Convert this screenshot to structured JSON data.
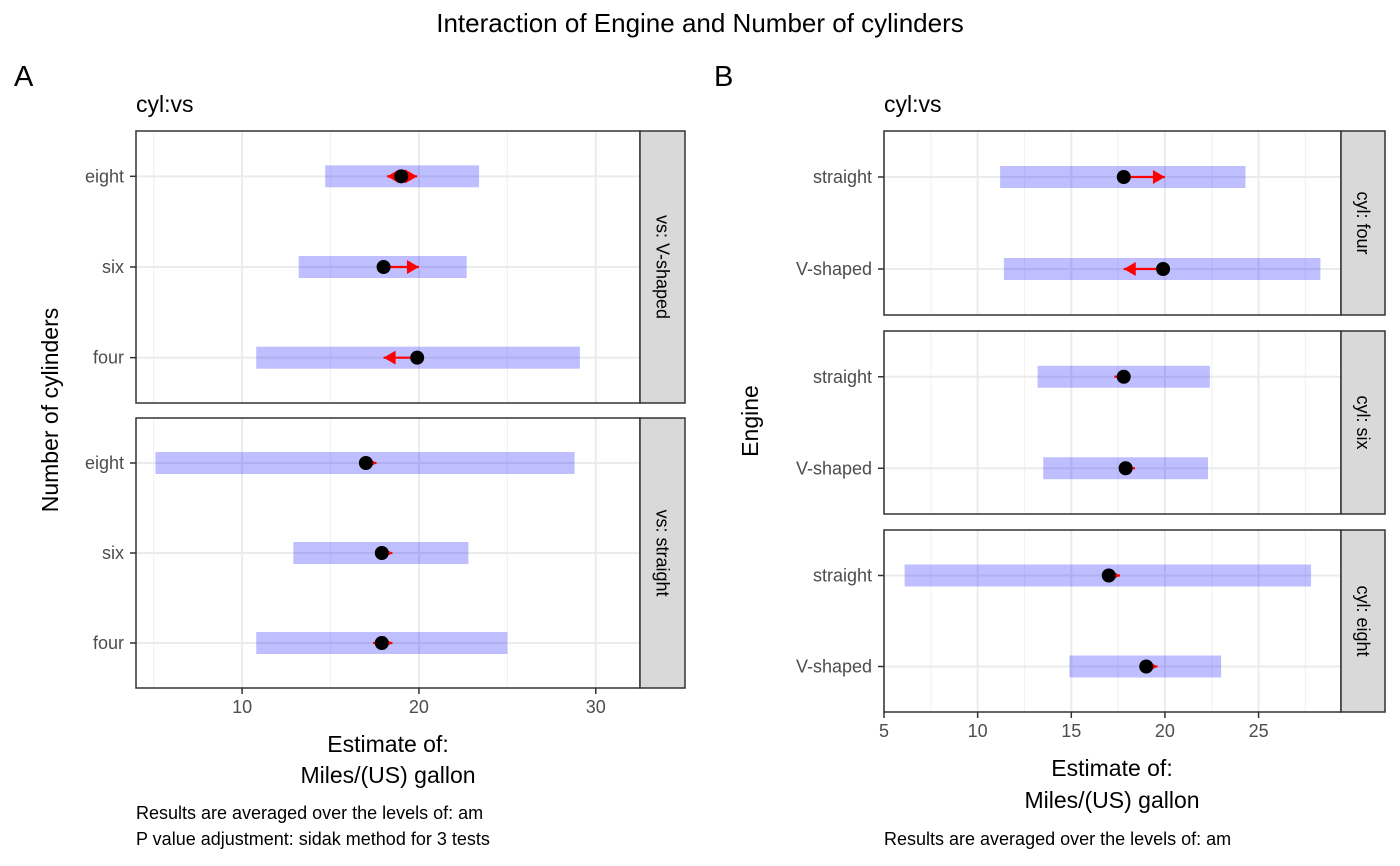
{
  "title": "Interaction of Engine and Number of cylinders",
  "colors": {
    "ci": "#0000ff",
    "arrow": "#ff0000",
    "point": "#000000",
    "strip": "#d9d9d9"
  },
  "chart_data": [
    {
      "panel_tag": "A",
      "type": "interval",
      "subtitle": "cyl:vs",
      "xlabel_line1": "Estimate of:",
      "xlabel_line2": "Miles/(US) gallon",
      "ylabel": "Number of cylinders",
      "xticks": [
        "10",
        "20",
        "30"
      ],
      "xlim": [
        4,
        32.5
      ],
      "caption_line1": "Results are averaged over the levels of: am",
      "caption_line2": "P value adjustment: sidak method for 3 tests",
      "grid": true,
      "facets": [
        {
          "label": "vs: V-shaped",
          "rows": [
            {
              "category": "eight",
              "estimate": 19.0,
              "ci": [
                14.7,
                23.4
              ],
              "arrow_left": 18.2,
              "arrow_right": 19.9
            },
            {
              "category": "six",
              "estimate": 18.0,
              "ci": [
                13.2,
                22.7
              ],
              "arrow_left": null,
              "arrow_right": 20.0
            },
            {
              "category": "four",
              "estimate": 19.9,
              "ci": [
                10.8,
                29.1
              ],
              "arrow_left": 18.0,
              "arrow_right": null
            }
          ]
        },
        {
          "label": "vs: straight",
          "rows": [
            {
              "category": "eight",
              "estimate": 17.0,
              "ci": [
                5.1,
                28.8
              ],
              "arrow_left": null,
              "arrow_right": 17.6
            },
            {
              "category": "six",
              "estimate": 17.9,
              "ci": [
                12.9,
                22.8
              ],
              "arrow_left": null,
              "arrow_right": 18.5
            },
            {
              "category": "four",
              "estimate": 17.9,
              "ci": [
                10.8,
                25.0
              ],
              "arrow_left": 17.4,
              "arrow_right": 18.5
            }
          ]
        }
      ]
    },
    {
      "panel_tag": "B",
      "type": "interval",
      "subtitle": "cyl:vs",
      "xlabel_line1": "Estimate of:",
      "xlabel_line2": "Miles/(US) gallon",
      "ylabel": "Engine",
      "xticks": [
        "5",
        "10",
        "15",
        "20",
        "25"
      ],
      "xlim": [
        5,
        29.4
      ],
      "caption_line1": "Results are averaged over the levels of: am",
      "grid": true,
      "facets": [
        {
          "label": "cyl: four",
          "rows": [
            {
              "category": "straight",
              "estimate": 17.8,
              "ci": [
                11.2,
                24.3
              ],
              "arrow_left": null,
              "arrow_right": 20.0
            },
            {
              "category": "V-shaped",
              "estimate": 19.9,
              "ci": [
                11.4,
                28.3
              ],
              "arrow_left": 17.8,
              "arrow_right": null
            }
          ]
        },
        {
          "label": "cyl: six",
          "rows": [
            {
              "category": "straight",
              "estimate": 17.8,
              "ci": [
                13.2,
                22.4
              ],
              "arrow_left": 17.3,
              "arrow_right": null
            },
            {
              "category": "V-shaped",
              "estimate": 17.9,
              "ci": [
                13.5,
                22.3
              ],
              "arrow_left": null,
              "arrow_right": 18.4
            }
          ]
        },
        {
          "label": "cyl: eight",
          "rows": [
            {
              "category": "straight",
              "estimate": 17.0,
              "ci": [
                6.1,
                27.8
              ],
              "arrow_left": null,
              "arrow_right": 17.6
            },
            {
              "category": "V-shaped",
              "estimate": 19.0,
              "ci": [
                14.9,
                23.0
              ],
              "arrow_left": null,
              "arrow_right": 19.6
            }
          ]
        }
      ]
    }
  ]
}
